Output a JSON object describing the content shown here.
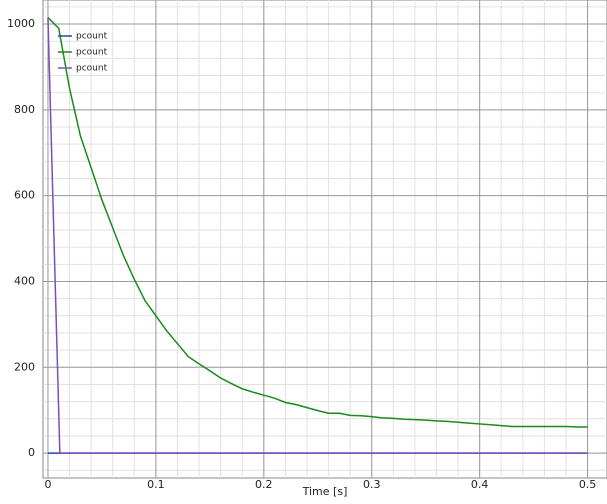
{
  "chart_data": {
    "type": "line",
    "x_label": "Time [s]",
    "xlim": [
      -0.0046,
      0.518
    ],
    "ylim": [
      -58,
      1056
    ],
    "xticks": [
      0,
      0.1,
      0.2,
      0.3,
      0.4,
      0.5
    ],
    "yticks": [
      0,
      200,
      400,
      600,
      800,
      1000
    ],
    "grid": true,
    "minor_grid": true,
    "legend": "upper left",
    "series": [
      {
        "name": "pcount",
        "color": "#1f4e9c",
        "x": [
          0,
          0.5
        ],
        "values": [
          0,
          0
        ]
      },
      {
        "name": "pcount",
        "color": "#1a8a1a",
        "x": [
          0,
          0.01,
          0.02,
          0.03,
          0.04,
          0.05,
          0.06,
          0.07,
          0.08,
          0.09,
          0.1,
          0.11,
          0.12,
          0.13,
          0.14,
          0.15,
          0.16,
          0.17,
          0.18,
          0.19,
          0.2,
          0.21,
          0.22,
          0.23,
          0.24,
          0.25,
          0.26,
          0.27,
          0.28,
          0.29,
          0.3,
          0.31,
          0.32,
          0.33,
          0.34,
          0.35,
          0.36,
          0.37,
          0.38,
          0.39,
          0.4,
          0.41,
          0.42,
          0.43,
          0.44,
          0.45,
          0.46,
          0.47,
          0.48,
          0.49,
          0.5
        ],
        "values": [
          1015,
          990,
          850,
          740,
          665,
          590,
          525,
          460,
          405,
          355,
          320,
          285,
          255,
          225,
          208,
          192,
          175,
          162,
          150,
          142,
          135,
          128,
          118,
          113,
          106,
          99,
          93,
          93,
          88,
          87,
          85,
          82,
          81,
          79,
          78,
          77,
          75,
          74,
          72,
          70,
          68,
          66,
          64,
          62,
          62,
          62,
          62,
          62,
          62,
          61,
          61
        ]
      },
      {
        "name": "pcount",
        "color": "#7b4fb8",
        "x": [
          0,
          0.011,
          0.5
        ],
        "values": [
          1015,
          0,
          0
        ]
      }
    ]
  }
}
